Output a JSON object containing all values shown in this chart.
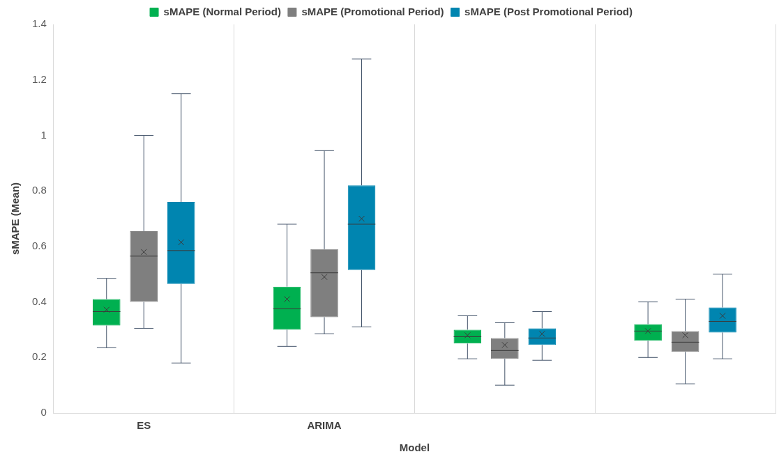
{
  "chart_data": {
    "type": "box",
    "xlabel": "Model",
    "ylabel": "sMAPE (Mean)",
    "categories": [
      "ES",
      "ARIMA",
      null,
      null
    ],
    "ylim": [
      0,
      1.4
    ],
    "yticks": [
      0,
      0.2,
      0.4,
      0.6,
      0.8,
      1,
      1.2,
      1.4
    ],
    "grid": "x",
    "legend": "top",
    "marker": "cross",
    "series": [
      {
        "name": "sMAPE (Normal Period)",
        "color": "#00b050",
        "boxes": [
          {
            "low": 0.235,
            "q1": 0.315,
            "median": 0.365,
            "q3": 0.41,
            "high": 0.485,
            "mean": 0.372
          },
          {
            "low": 0.24,
            "q1": 0.3,
            "median": 0.375,
            "q3": 0.455,
            "high": 0.68,
            "mean": 0.41
          },
          {
            "low": 0.195,
            "q1": 0.25,
            "median": 0.275,
            "q3": 0.3,
            "high": 0.35,
            "mean": 0.28
          },
          {
            "low": 0.2,
            "q1": 0.26,
            "median": 0.295,
            "q3": 0.32,
            "high": 0.4,
            "mean": 0.295
          }
        ]
      },
      {
        "name": "sMAPE (Promotional Period)",
        "color": "#7f7f7f",
        "boxes": [
          {
            "low": 0.305,
            "q1": 0.4,
            "median": 0.565,
            "q3": 0.655,
            "high": 1.0,
            "mean": 0.58
          },
          {
            "low": 0.285,
            "q1": 0.345,
            "median": 0.505,
            "q3": 0.59,
            "high": 0.945,
            "mean": 0.49
          },
          {
            "low": 0.1,
            "q1": 0.195,
            "median": 0.225,
            "q3": 0.27,
            "high": 0.325,
            "mean": 0.245
          },
          {
            "low": 0.105,
            "q1": 0.22,
            "median": 0.255,
            "q3": 0.295,
            "high": 0.41,
            "mean": 0.28
          }
        ]
      },
      {
        "name": "sMAPE (Post Promotional Period)",
        "color": "#0085b0",
        "boxes": [
          {
            "low": 0.18,
            "q1": 0.465,
            "median": 0.585,
            "q3": 0.76,
            "high": 1.15,
            "mean": 0.615
          },
          {
            "low": 0.31,
            "q1": 0.515,
            "median": 0.68,
            "q3": 0.82,
            "high": 1.275,
            "mean": 0.7
          },
          {
            "low": 0.19,
            "q1": 0.245,
            "median": 0.27,
            "q3": 0.305,
            "high": 0.365,
            "mean": 0.285
          },
          {
            "low": 0.195,
            "q1": 0.29,
            "median": 0.33,
            "q3": 0.38,
            "high": 0.5,
            "mean": 0.35
          }
        ]
      }
    ]
  }
}
